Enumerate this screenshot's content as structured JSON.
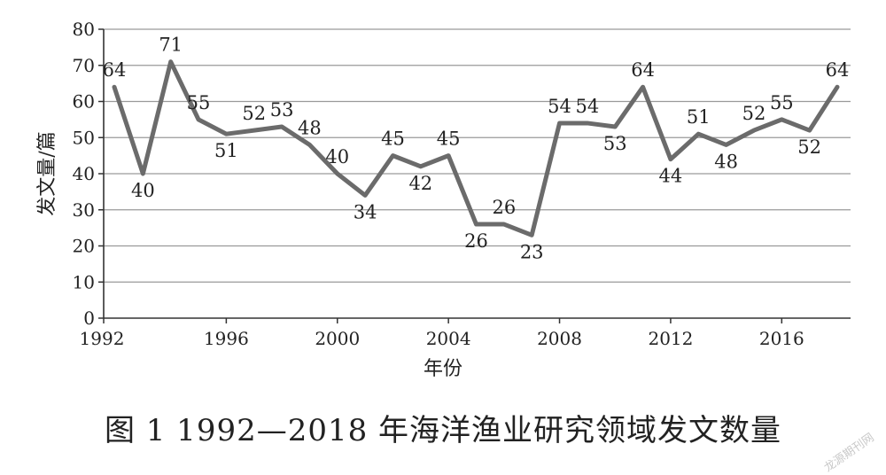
{
  "caption": "图 1   1992—2018 年海洋渔业研究领域发文数量",
  "watermark": "龙源期刊网",
  "chart_data": {
    "type": "line",
    "title": "",
    "xlabel": "年份",
    "ylabel": "发文量/篇",
    "xlim": [
      1992,
      2019
    ],
    "ylim": [
      0,
      80
    ],
    "x_ticks": [
      1992,
      1996,
      2000,
      2004,
      2008,
      2012,
      2016
    ],
    "y_ticks": [
      0,
      10,
      20,
      30,
      40,
      50,
      60,
      70,
      80
    ],
    "grid": "horizontal",
    "line_color": "#6b6b6b",
    "x": [
      1992,
      1993,
      1994,
      1995,
      1996,
      1997,
      1998,
      1999,
      2000,
      2001,
      2002,
      2003,
      2004,
      2005,
      2006,
      2007,
      2008,
      2009,
      2010,
      2011,
      2012,
      2013,
      2014,
      2015,
      2016,
      2017,
      2018
    ],
    "values": [
      64,
      40,
      71,
      55,
      51,
      52,
      53,
      48,
      40,
      34,
      45,
      42,
      45,
      26,
      26,
      23,
      54,
      54,
      53,
      64,
      44,
      51,
      48,
      52,
      55,
      52,
      64
    ],
    "labels": [
      "64",
      "40",
      "71",
      "55",
      "51",
      "52",
      "53",
      "48",
      "40",
      "34",
      "45",
      "42",
      "45",
      "26",
      "26",
      "23",
      "54",
      "54",
      "53",
      "64",
      "44",
      "51",
      "48",
      "52",
      "55",
      "52",
      "64"
    ]
  }
}
